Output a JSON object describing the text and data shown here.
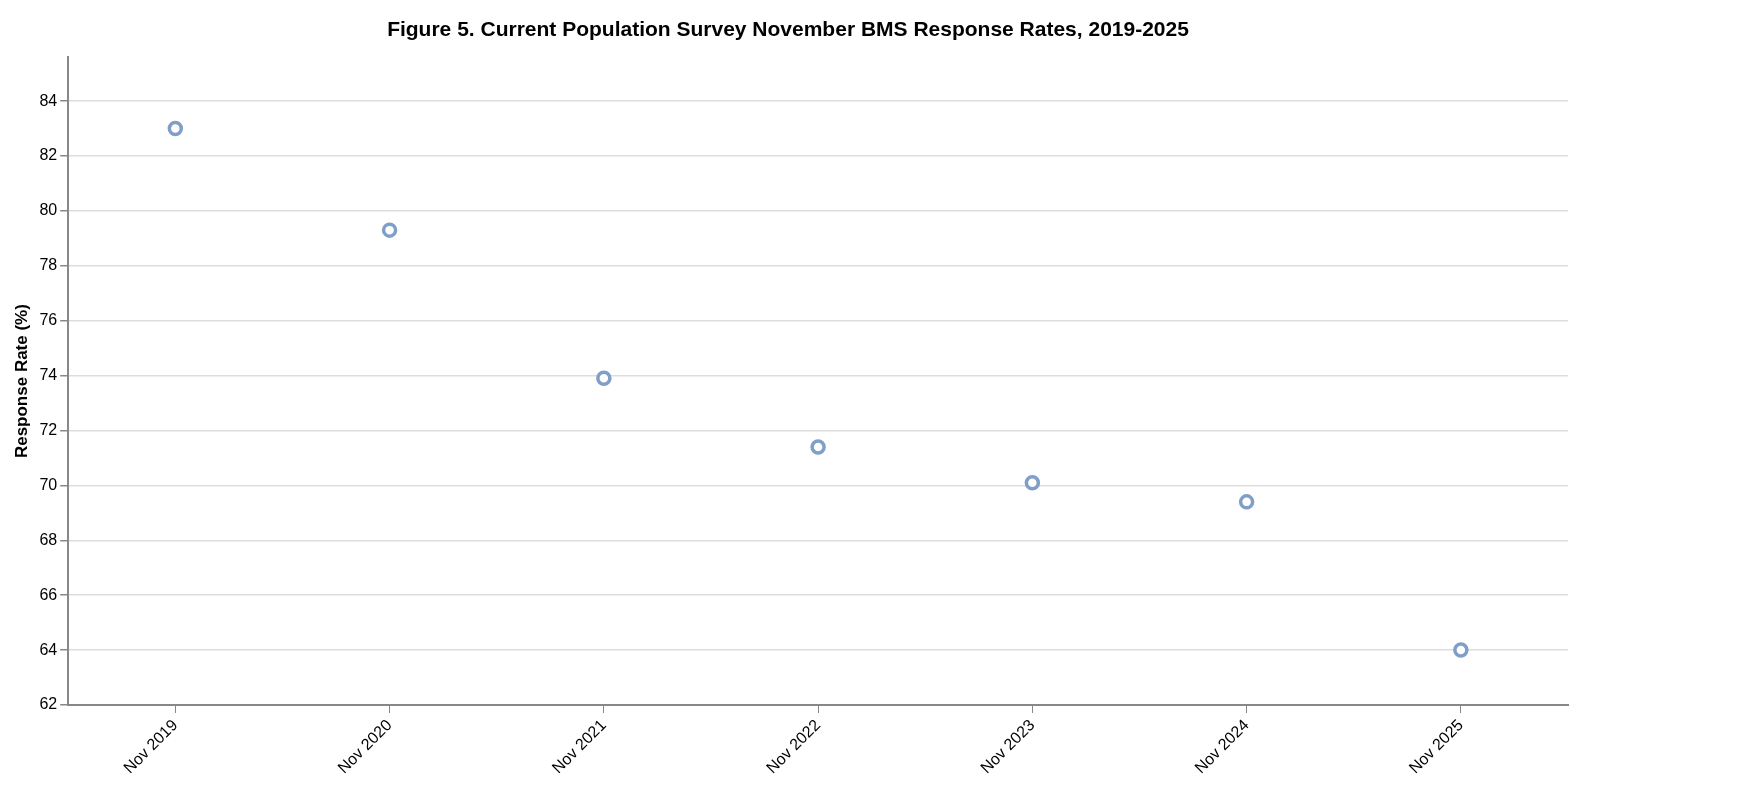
{
  "chart_data": {
    "type": "scatter",
    "title": "Figure 5. Current Population Survey November BMS Response Rates, 2019-2025",
    "ylabel": "Response Rate (%)",
    "categories": [
      "Nov 2019",
      "Nov 2020",
      "Nov 2021",
      "Nov 2022",
      "Nov 2023",
      "Nov 2024",
      "Nov 2025"
    ],
    "series": [
      {
        "color": "#7f9fc8",
        "values": [
          83.0,
          79.3,
          73.9,
          71.4,
          70.1,
          69.4,
          64.0
        ]
      }
    ],
    "ylim": [
      62,
      85.6
    ],
    "yticks": [
      62,
      64,
      66,
      68,
      70,
      72,
      74,
      76,
      78,
      80,
      82,
      84
    ],
    "grid": "y",
    "legend": false,
    "marker": "circle"
  }
}
